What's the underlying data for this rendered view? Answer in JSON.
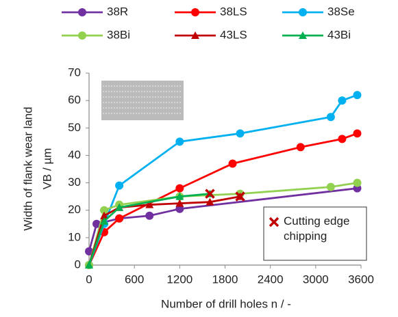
{
  "chart_data": {
    "type": "line",
    "xlabel": "Number of drill holes n / -",
    "ylabel": [
      "Width of flank wear  land",
      "VB / µm"
    ],
    "xlim": [
      0,
      3600
    ],
    "xticks": [
      0,
      600,
      1200,
      1800,
      2400,
      3000,
      3600
    ],
    "ylim": [
      0,
      70
    ],
    "yticks": [
      0,
      10,
      20,
      30,
      40,
      50,
      60,
      70
    ],
    "grid": false,
    "series": [
      {
        "name": "38R",
        "color": "#7030a0",
        "marker": "circle",
        "x": [
          0,
          100,
          400,
          800,
          1200,
          3550
        ],
        "values": [
          5,
          15,
          17,
          18,
          20.5,
          28
        ]
      },
      {
        "name": "38LS",
        "color": "#ff0000",
        "marker": "circle",
        "x": [
          0,
          200,
          400,
          1200,
          1900,
          2800,
          3350,
          3550
        ],
        "values": [
          0,
          12,
          17,
          28,
          37,
          43,
          46,
          48
        ]
      },
      {
        "name": "38Se",
        "color": "#00b0f0",
        "marker": "circle",
        "x": [
          0,
          200,
          400,
          1200,
          2000,
          3200,
          3350,
          3550
        ],
        "values": [
          0,
          15,
          29,
          45,
          48,
          54,
          60,
          62
        ]
      },
      {
        "name": "38Bi",
        "color": "#92d050",
        "marker": "circle",
        "x": [
          0,
          200,
          400,
          1200,
          2000,
          3200,
          3550
        ],
        "values": [
          0,
          20,
          22,
          25,
          26,
          28.5,
          30
        ]
      },
      {
        "name": "43LS",
        "color": "#c00000",
        "marker": "triangle",
        "x": [
          0,
          200,
          400,
          800,
          1200,
          1600,
          2000
        ],
        "values": [
          0,
          18,
          21,
          22,
          22.5,
          23,
          25
        ]
      },
      {
        "name": "43Bi",
        "color": "#00b050",
        "marker": "triangle",
        "x": [
          0,
          200,
          400,
          1200,
          1600
        ],
        "values": [
          0,
          16,
          21,
          25,
          26
        ]
      }
    ],
    "chipping": {
      "name": "Cutting edge chipping",
      "color": "#c00000",
      "x": [
        1600,
        2000
      ],
      "values": [
        26,
        25
      ]
    }
  }
}
